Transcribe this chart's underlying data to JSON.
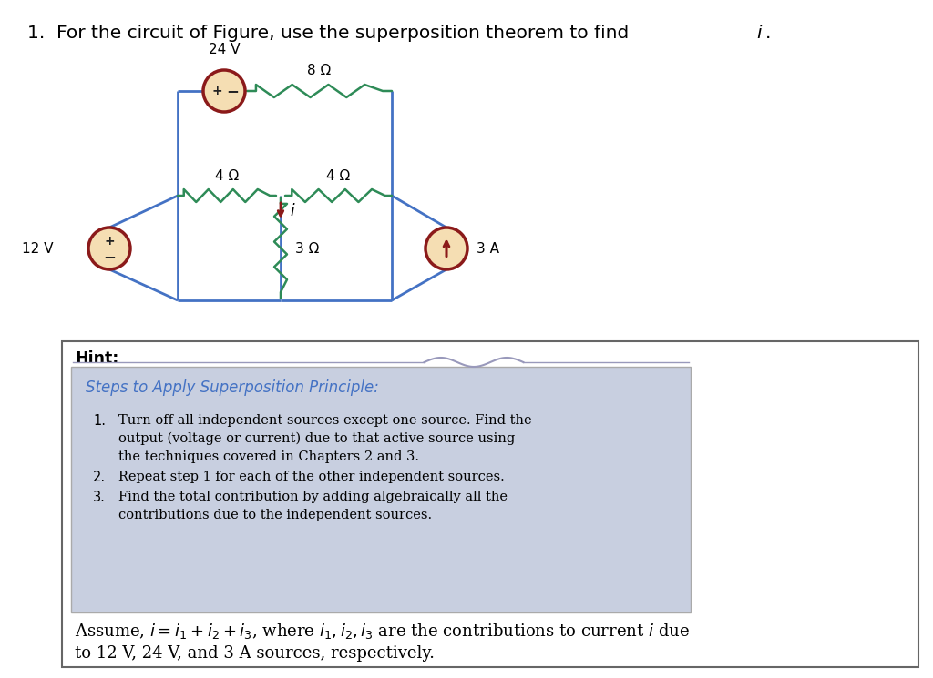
{
  "bg_color": "#ffffff",
  "circuit_line_color": "#4472C4",
  "resistor_color": "#2E8B57",
  "source_fill": "#F5DEB3",
  "source_edge": "#8B1A1A",
  "arrow_color": "#8B1A1A",
  "steps_title_color": "#4472C4",
  "hint_bg": "#c8cfe0",
  "title": "1.  For the circuit of Figure, use the superposition theorem to find ",
  "title_i": "i",
  "steps_title": "Steps to Apply Superposition Principle:",
  "step1_a": "Turn off all independent sources except one source. Find the",
  "step1_b": "output (voltage or current) due to that active source using",
  "step1_c": "the techniques covered in Chapters 2 and 3.",
  "step2": "Repeat step 1 for each of the other independent sources.",
  "step3_a": "Find the total contribution by adding algebraically all the",
  "step3_b": "contributions due to the independent sources.",
  "assume1": "Assume, ",
  "assume_eq": "i",
  "assume2": " = ",
  "assume_i1": "i",
  "assume3": "1",
  "assume4": " + ",
  "assume_i2": "i",
  "assume5": "2",
  "assume6": " + ",
  "assume_i3": "i",
  "assume7": "3",
  "assume8": ", where ",
  "assume_vars": "i",
  "assume9": "1",
  "assume10": ", ",
  "assume_vars2": "i",
  "assume11": "2",
  "assume12": ", ",
  "assume_vars3": "i",
  "assume13": "3",
  "assume14": " are the contributions to current ",
  "assume_iend": "i",
  "assume15": " due",
  "assume_line2": "to 12 V, 24 V, and 3 A sources, respectively."
}
